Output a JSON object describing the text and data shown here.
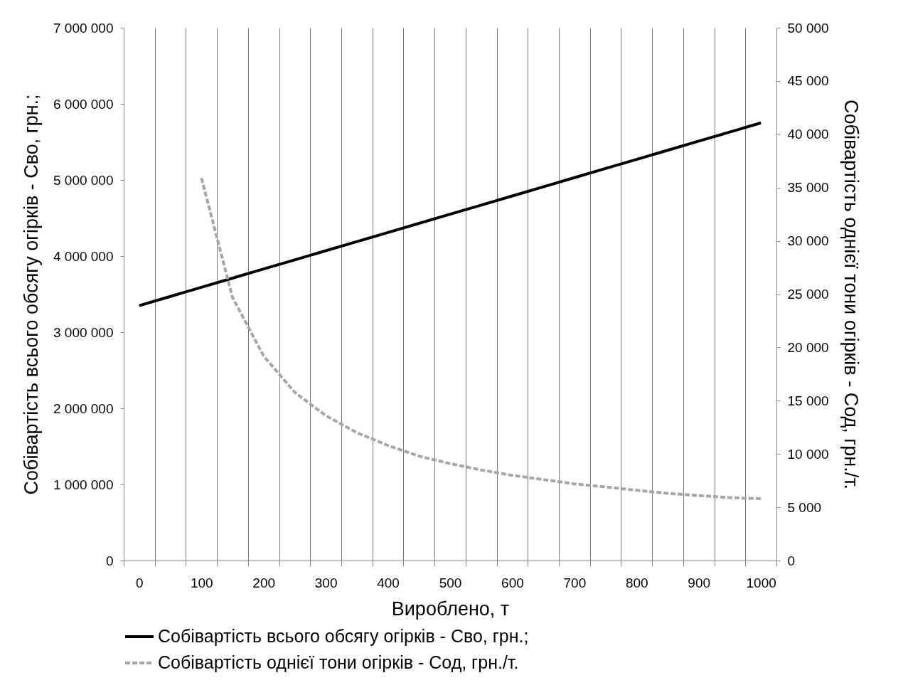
{
  "chart_data": {
    "type": "line",
    "xlabel": "Вироблено, т",
    "ylabel": "Собівартість всього обсягу огірків - Сво, грн.;",
    "y2label": "Собівартість однієї тони огірків - Сод, грн./т.",
    "categories": [
      "0",
      null,
      "100",
      null,
      "200",
      null,
      "300",
      null,
      "400",
      null,
      "500",
      null,
      "600",
      null,
      "700",
      null,
      "800",
      null,
      "900",
      null,
      "1000"
    ],
    "series": [
      {
        "name": "Собівартість всього обсягу огірків - Сво, грн.;",
        "color": "#000000",
        "line_style": "solid",
        "values": [
          3350000,
          3470000,
          3590000,
          3710000,
          3830000,
          3950000,
          4070000,
          4190000,
          4310000,
          4430000,
          4550000,
          4670000,
          4790000,
          4910000,
          5030000,
          5150000,
          5270000,
          5390000,
          5510000,
          5630000,
          5750000
        ]
      },
      {
        "name": "Собівартість однієї тони огірків - Сод, грн./т.",
        "color": "#a6a6a6",
        "line_style": "dashed",
        "axis": "y2",
        "values": [
          null,
          null,
          35900,
          24700,
          19200,
          15800,
          13600,
          12000,
          10800,
          9800,
          9100,
          8500,
          8000,
          7600,
          7200,
          6900,
          6600,
          6300,
          6100,
          5900,
          5800
        ]
      }
    ],
    "ylim": [
      0,
      7000000
    ],
    "yticks": [
      0,
      {
        "value": 1000000,
        "label": "1 000 000"
      },
      {
        "value": 2000000,
        "label": "2 000 000"
      },
      {
        "value": 3000000,
        "label": "3 000 000"
      },
      {
        "value": 4000000,
        "label": "4 000 000"
      },
      {
        "value": 5000000,
        "label": "5 000 000"
      },
      {
        "value": 6000000,
        "label": "6 000 000"
      },
      {
        "value": 7000000,
        "label": "7 000 000"
      }
    ],
    "y2lim": [
      0,
      50000
    ],
    "y2ticks": [
      0,
      {
        "value": 5000,
        "label": "5 000"
      },
      {
        "value": 10000,
        "label": "10 000"
      },
      {
        "value": 15000,
        "label": "15 000"
      },
      {
        "value": 20000,
        "label": "20 000"
      },
      {
        "value": 25000,
        "label": "25 000"
      },
      {
        "value": 30000,
        "label": "30 000"
      },
      {
        "value": 35000,
        "label": "35 000"
      },
      {
        "value": 40000,
        "label": "40 000"
      },
      {
        "value": 45000,
        "label": "45 000"
      },
      {
        "value": 50000,
        "label": "50 000"
      }
    ],
    "grid": "x",
    "legend": "bottom",
    "marker": "none"
  }
}
